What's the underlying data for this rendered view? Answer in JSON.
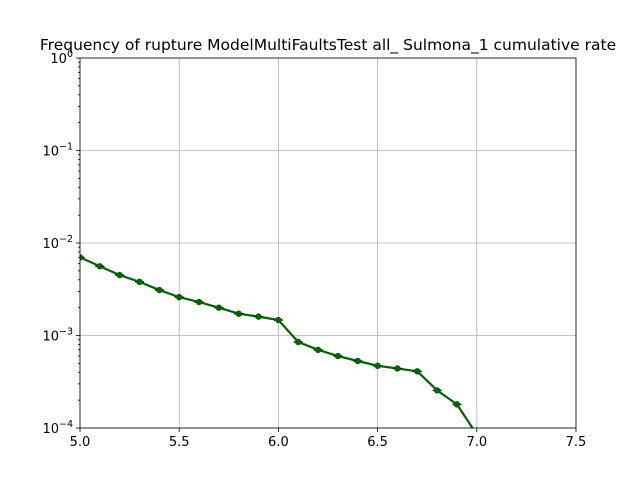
{
  "chart_data": {
    "type": "line",
    "title": "Frequency of rupture ModelMultiFaultsTest all_ Sulmona_1 cumulative rate",
    "xlabel": "",
    "ylabel": "",
    "xlim": [
      5.0,
      7.5
    ],
    "ylim": [
      0.0001,
      1
    ],
    "yscale": "log",
    "grid": true,
    "x_ticks": [
      {
        "value": 5.0,
        "label": "5.0"
      },
      {
        "value": 5.5,
        "label": "5.5"
      },
      {
        "value": 6.0,
        "label": "6.0"
      },
      {
        "value": 6.5,
        "label": "6.5"
      },
      {
        "value": 7.0,
        "label": "7.0"
      },
      {
        "value": 7.5,
        "label": "7.5"
      }
    ],
    "y_ticks": [
      {
        "value": 1,
        "base": "10",
        "exp": "0"
      },
      {
        "value": 0.1,
        "base": "10",
        "exp": "−1"
      },
      {
        "value": 0.01,
        "base": "10",
        "exp": "−2"
      },
      {
        "value": 0.001,
        "base": "10",
        "exp": "−3"
      },
      {
        "value": 0.0001,
        "base": "10",
        "exp": "−4"
      }
    ],
    "series": [
      {
        "color": "#006400",
        "x": [
          5.0,
          5.1,
          5.2,
          5.3,
          5.4,
          5.5,
          5.6,
          5.7,
          5.8,
          5.9,
          6.0,
          6.1,
          6.2,
          6.3,
          6.4,
          6.5,
          6.6,
          6.7,
          6.8,
          6.9,
          7.0
        ],
        "y": [
          0.007,
          0.0056,
          0.0045,
          0.0038,
          0.0031,
          0.0026,
          0.0023,
          0.002,
          0.00172,
          0.0016,
          0.00147,
          0.00085,
          0.0007,
          0.0006,
          0.00053,
          0.00047,
          0.00044,
          0.00041,
          0.000255,
          0.00018,
          8.5e-05
        ]
      }
    ]
  }
}
